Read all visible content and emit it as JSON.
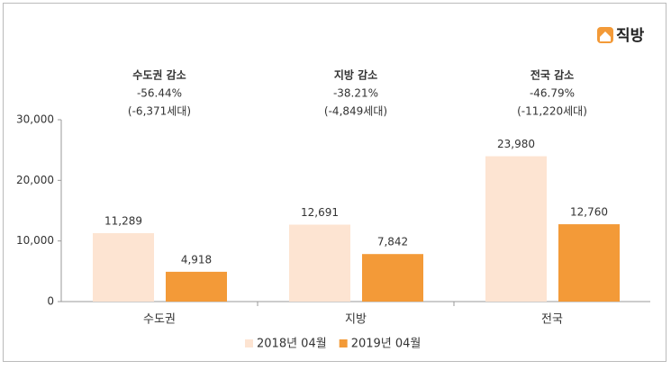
{
  "logo": "직방",
  "chart_data": {
    "type": "bar",
    "categories": [
      "수도권",
      "지방",
      "전국"
    ],
    "series": [
      {
        "name": "2018년 04월",
        "color": "#fde4d2",
        "values": [
          11289,
          12691,
          23980
        ],
        "value_labels": [
          "11,289",
          "12,691",
          "23,980"
        ]
      },
      {
        "name": "2019년 04월",
        "color": "#f39a38",
        "values": [
          4918,
          7842,
          12760
        ],
        "value_labels": [
          "4,918",
          "7,842",
          "12,760"
        ]
      }
    ],
    "ylim": [
      0,
      30000
    ],
    "yticks": [
      0,
      {
        "value": 10000,
        "label": "10,000"
      },
      {
        "value": 20000,
        "label": "20,000"
      },
      {
        "value": 30000,
        "label": "30,000"
      }
    ],
    "annotations": [
      {
        "title": "수도권  감소",
        "change": "-56.44%",
        "count": "(-6,371세대)"
      },
      {
        "title": "지방 감소",
        "change": "-38.21%",
        "count": "(-4,849세대)"
      },
      {
        "title": "전국 감소",
        "change": "-46.79%",
        "count": "(-11,220세대)"
      }
    ],
    "legend": "bottom"
  }
}
